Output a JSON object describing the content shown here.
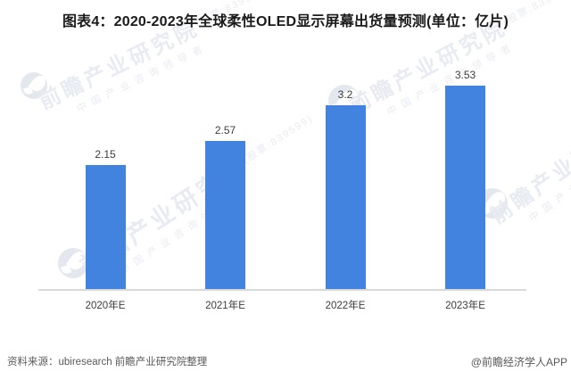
{
  "title": "图表4：2020-2023年全球柔性OLED显示屏幕出货量预测(单位：亿片)",
  "chart_data": {
    "type": "bar",
    "title": "2020-2023年全球柔性OLED显示屏幕出货量预测",
    "unit_label": "单位：亿片",
    "categories": [
      "2020年E",
      "2021年E",
      "2022年E",
      "2023年E"
    ],
    "values": [
      2.15,
      2.57,
      3.2,
      3.53
    ],
    "value_labels": [
      "2.15",
      "2.57",
      "3.2",
      "3.53"
    ],
    "xlabel": "",
    "ylabel": "",
    "ylim": [
      0,
      4
    ],
    "grid": false,
    "legend": false,
    "bar_color": "#4183DE",
    "axis_line_color": "#D9D9D9",
    "label_color": "#3D3D3D"
  },
  "footer": {
    "source": "资料来源：ubiresearch 前瞻产业研究院整理",
    "credit": "@前瞻经济学人APP"
  },
  "watermark": {
    "logo_icon": "qianzhan-logo-icon",
    "brand": "前瞻产业研究院",
    "stock": "(股票:839599)",
    "tagline": "中国产业咨询领导者",
    "color": "#E8EBF1"
  }
}
